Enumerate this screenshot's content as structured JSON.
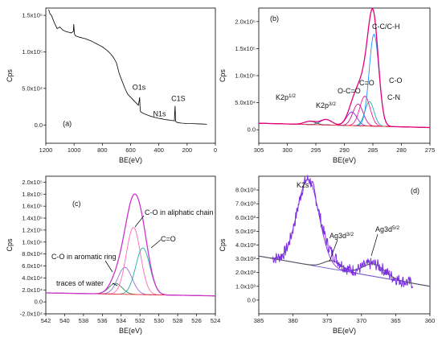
{
  "chart_data": [
    {
      "panel_label": "(a)",
      "type": "line",
      "xlabel": "BE(eV)",
      "ylabel": "Cps",
      "xlim": [
        1200,
        0
      ],
      "ylim": [
        -25000,
        160000
      ],
      "x_ticks": [
        "1200",
        "1000",
        "800",
        "600",
        "400",
        "200",
        "0"
      ],
      "y_ticks": [
        "0.0",
        "5.0x10⁴",
        "1.0x10⁵",
        "1.5x10⁵"
      ],
      "series": [
        {
          "color": "#000000",
          "x": [
            1180,
            1170,
            1160,
            1140,
            1120,
            1100,
            1080,
            1060,
            1040,
            1020,
            1005,
            1002,
            998,
            990,
            975,
            960,
            940,
            920,
            900,
            880,
            860,
            840,
            820,
            800,
            780,
            760,
            740,
            720,
            700,
            680,
            660,
            640,
            620,
            600,
            580,
            560,
            545,
            540,
            536,
            532,
            528,
            520,
            500,
            480,
            460,
            440,
            420,
            400,
            380,
            360,
            340,
            320,
            300,
            290,
            288,
            285,
            282,
            278,
            260,
            240,
            200,
            160,
            120,
            80,
            60
          ],
          "y": [
            158000,
            152000,
            150000,
            140000,
            132000,
            134000,
            130000,
            128000,
            127000,
            126000,
            128000,
            138000,
            125000,
            122000,
            121000,
            120000,
            119000,
            118000,
            116500,
            115000,
            113000,
            111000,
            109000,
            107000,
            104000,
            101000,
            97000,
            92000,
            85000,
            70000,
            60000,
            50000,
            42000,
            38000,
            34000,
            30000,
            27000,
            32000,
            38000,
            20000,
            18000,
            17000,
            15000,
            13500,
            12000,
            11000,
            10000,
            9000,
            8500,
            7500,
            7000,
            6500,
            6000,
            5500,
            16000,
            26000,
            6000,
            4000,
            3000,
            2500,
            2000,
            1800,
            1500,
            1200,
            1000
          ]
        }
      ],
      "annotations": [
        "O1s",
        "N1s",
        "C1S"
      ]
    },
    {
      "panel_label": "(b)",
      "type": "line",
      "xlabel": "BE(eV)",
      "ylabel": "Cps",
      "xlim": [
        305,
        275
      ],
      "ylim": [
        -25000,
        225000
      ],
      "x_ticks": [
        "305",
        "300",
        "295",
        "290",
        "285",
        "280",
        "275"
      ],
      "y_ticks": [
        "0.0",
        "5.0x10⁴",
        "1.0x10⁵",
        "1.5x10⁵",
        "2.0x10⁵"
      ],
      "peaks": [
        {
          "label": "K2p1/2",
          "center": 296.0,
          "height": 6000,
          "sigma": 1.0,
          "color": "#2b6c2b"
        },
        {
          "label": "K2p3/2",
          "center": 293.2,
          "height": 10000,
          "sigma": 1.0,
          "color": "#2a4fb0"
        },
        {
          "label": "O-C=O",
          "center": 288.7,
          "height": 25000,
          "sigma": 0.9,
          "color": "#8a2be2"
        },
        {
          "label": "C=O",
          "center": 287.6,
          "height": 40000,
          "sigma": 0.9,
          "color": "#c71585"
        },
        {
          "label": "C-O",
          "center": 286.4,
          "height": 55000,
          "sigma": 0.9,
          "color": "#ff1493"
        },
        {
          "label": "C-N",
          "center": 285.6,
          "height": 45000,
          "sigma": 0.8,
          "color": "#20b2aa"
        },
        {
          "label": "C-C/C-H",
          "center": 284.8,
          "height": 170000,
          "sigma": 0.85,
          "color": "#1e90ff"
        }
      ],
      "envelope_color": "#e4007c",
      "background_color": "#ff3030",
      "background": {
        "start": 12000,
        "end": 4000
      }
    },
    {
      "panel_label": "(c)",
      "type": "line",
      "xlabel": "BE(eV)",
      "ylabel": "Cps",
      "xlim": [
        542,
        524
      ],
      "ylim": [
        -20000,
        210000
      ],
      "x_ticks": [
        "542",
        "540",
        "538",
        "536",
        "534",
        "532",
        "530",
        "528",
        "526",
        "524"
      ],
      "y_ticks": [
        "-2.0x10⁴",
        "0.0",
        "2.0x10⁴",
        "4.0x10⁴",
        "6.0x10⁴",
        "8.0x10⁴",
        "1.0x10⁵",
        "1.2x10⁵",
        "1.4x10⁵",
        "1.6x10⁵",
        "1.8x10⁵",
        "2.0x10⁵"
      ],
      "peaks": [
        {
          "label": "traces of water",
          "center": 534.6,
          "height": 18000,
          "sigma": 0.7,
          "color": "#2e8b57"
        },
        {
          "label": "C-O in aromatic ring",
          "center": 533.6,
          "height": 45000,
          "sigma": 0.75,
          "color": "#9370db"
        },
        {
          "label": "C-O in aliphatic chain",
          "center": 532.7,
          "height": 112000,
          "sigma": 0.75,
          "color": "#ff69b4"
        },
        {
          "label": "C=O",
          "center": 531.7,
          "height": 78000,
          "sigma": 0.75,
          "color": "#20b2aa"
        }
      ],
      "envelope_color": "#cc33cc",
      "background_color": "#ff3030",
      "background": {
        "start": 15000,
        "end": 10000
      }
    },
    {
      "panel_label": "(d)",
      "type": "line",
      "xlabel": "BE(eV)",
      "ylabel": "Cps",
      "xlim": [
        385,
        360
      ],
      "ylim": [
        -1000,
        9000
      ],
      "x_ticks": [
        "385",
        "380",
        "375",
        "370",
        "365",
        "360"
      ],
      "y_ticks": [
        "0.0",
        "1.0x10³",
        "2.0x10³",
        "3.0x10³",
        "4.0x10³",
        "5.0x10³",
        "6.0x10³",
        "7.0x10³",
        "8.0x10³"
      ],
      "peaks": [
        {
          "label": "K2s",
          "center": 377.8,
          "height": 6200,
          "sigma": 1.6,
          "color": "#8a2be2"
        },
        {
          "label": "Ag3d3/2",
          "center": 374.2,
          "height": 600,
          "sigma": 1.3,
          "color": "#6a5acd"
        },
        {
          "label": "Ag3d5/2",
          "center": 368.2,
          "height": 900,
          "sigma": 1.6,
          "color": "#6a5acd"
        }
      ],
      "background_line_color": "#555555",
      "data_color": "#7b2fe0",
      "background": {
        "start": 3200,
        "end": 1000
      }
    }
  ]
}
